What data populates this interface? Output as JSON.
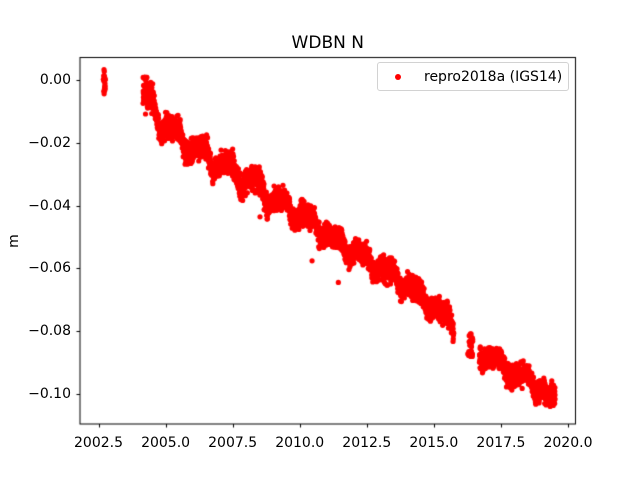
{
  "chart_data": {
    "type": "scatter",
    "title": "WDBN N",
    "xlabel": "",
    "ylabel": "m",
    "legend": {
      "label": "repro2018a (IGS14)",
      "location": "upper right",
      "marker": "dot-icon",
      "marker_color": "#ff0000"
    },
    "axes": {
      "xlim": [
        2001.81,
        2020.28
      ],
      "ylim": [
        -0.1096,
        0.00716
      ],
      "xticks": [
        2002.5,
        2005.0,
        2007.5,
        2010.0,
        2012.5,
        2015.0,
        2017.5,
        2020.0
      ],
      "xtick_labels": [
        "2002.5",
        "2005.0",
        "2007.5",
        "2010.0",
        "2012.5",
        "2015.0",
        "2017.5",
        "2020.0"
      ],
      "yticks": [
        0.0,
        -0.02,
        -0.04,
        -0.06,
        -0.08,
        -0.1
      ],
      "ytick_labels": [
        "0.00",
        "−0.02",
        "−0.04",
        "−0.06",
        "−0.08",
        "−0.10"
      ],
      "grid": false,
      "background": "#ffffff",
      "spine_color": "#000000"
    },
    "series": [
      {
        "name": "repro2018a (IGS14)",
        "color": "#ff0000",
        "marker_radius_px": 2.6,
        "units": "m",
        "trend_anchors": [
          [
            2004.16,
            -0.004
          ],
          [
            2004.6,
            -0.01
          ],
          [
            2005.2,
            -0.016
          ],
          [
            2006.0,
            -0.0215
          ],
          [
            2007.0,
            -0.0265
          ],
          [
            2008.0,
            -0.0315
          ],
          [
            2009.0,
            -0.038
          ],
          [
            2010.0,
            -0.0425
          ],
          [
            2011.0,
            -0.049
          ],
          [
            2012.0,
            -0.0545
          ],
          [
            2013.0,
            -0.06
          ],
          [
            2014.0,
            -0.0655
          ],
          [
            2015.0,
            -0.072
          ],
          [
            2015.74,
            -0.078
          ],
          [
            2016.37,
            -0.0845
          ],
          [
            2016.78,
            -0.087
          ],
          [
            2017.0,
            -0.0885
          ],
          [
            2017.5,
            -0.0905
          ],
          [
            2018.0,
            -0.0935
          ],
          [
            2018.6,
            -0.0955
          ],
          [
            2019.0,
            -0.099
          ],
          [
            2019.52,
            -0.1025
          ]
        ],
        "seasonal": {
          "amp_before_2010": 0.0028,
          "amp_after_2010": 0.0017,
          "phase": 0.1,
          "harmonic2_amp": 0.0011,
          "harmonic2_phase": 1.2
        },
        "segments": [
          {
            "mode": "cluster",
            "t0": 2002.68,
            "t1": 2002.76,
            "n": 20,
            "center": -0.0008,
            "sigma": 0.0016,
            "clip": 0.0028
          },
          {
            "mode": "band",
            "t0": 2004.16,
            "t1": 2015.74,
            "step": 0.004,
            "sigma": 0.0018,
            "clip": 0.0043,
            "start_boost": 1.1,
            "boost_span": 0.45
          },
          {
            "mode": "cluster",
            "t0": 2016.26,
            "t1": 2016.45,
            "n": 26,
            "center": -0.0845,
            "sigma": 0.0024,
            "clip": 0.0036
          },
          {
            "mode": "band",
            "t0": 2016.7,
            "t1": 2019.52,
            "step": 0.004,
            "sigma": 0.0018,
            "clip": 0.0043
          }
        ],
        "extra_points": [
          [
            2002.705,
            0.0033
          ],
          [
            2002.715,
            0.0027
          ],
          [
            2002.71,
            -0.0044
          ],
          [
            2008.52,
            -0.0436
          ],
          [
            2010.46,
            -0.0576
          ],
          [
            2011.44,
            -0.0645
          ]
        ]
      }
    ],
    "trend_samples": [
      [
        2002.7,
        -0.001
      ],
      [
        2004.2,
        -0.004
      ],
      [
        2005.0,
        -0.014
      ],
      [
        2006.0,
        -0.0215
      ],
      [
        2007.0,
        -0.0265
      ],
      [
        2008.0,
        -0.0315
      ],
      [
        2009.0,
        -0.038
      ],
      [
        2010.0,
        -0.0425
      ],
      [
        2011.0,
        -0.049
      ],
      [
        2012.0,
        -0.0545
      ],
      [
        2013.0,
        -0.06
      ],
      [
        2014.0,
        -0.0655
      ],
      [
        2015.0,
        -0.072
      ],
      [
        2016.37,
        -0.0845
      ],
      [
        2017.0,
        -0.0885
      ],
      [
        2018.0,
        -0.0935
      ],
      [
        2019.0,
        -0.099
      ],
      [
        2019.5,
        -0.1025
      ]
    ]
  }
}
